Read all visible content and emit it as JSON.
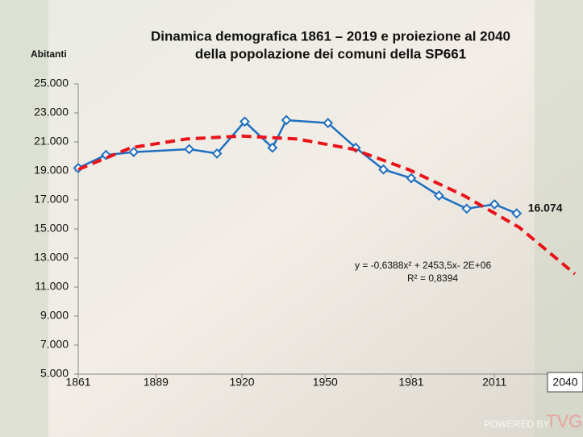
{
  "chart_data": {
    "type": "line",
    "title": [
      "Dinamica demografica 1861 – 2019 e proiezione al 2040",
      "della popolazione dei comuni della SP661"
    ],
    "ylabel": "Abitanti",
    "xlim": [
      1861,
      2040
    ],
    "xticks": [
      1861,
      1889,
      1920,
      1950,
      1981,
      2011,
      2040
    ],
    "ylim": [
      5000,
      25000
    ],
    "yticks": [
      {
        "value": 5000,
        "label": "5.000"
      },
      {
        "value": 7000,
        "label": "7.000"
      },
      {
        "value": 9000,
        "label": "9.000"
      },
      {
        "value": 11000,
        "label": "11.000"
      },
      {
        "value": 13000,
        "label": "13.000"
      },
      {
        "value": 15000,
        "label": "15.000"
      },
      {
        "value": 17000,
        "label": "17.000"
      },
      {
        "value": 19000,
        "label": "19.000"
      },
      {
        "value": 21000,
        "label": "21.000"
      },
      {
        "value": 23000,
        "label": "23.000"
      },
      {
        "value": 25000,
        "label": "25.000"
      }
    ],
    "series": [
      {
        "color": "#1f6fc0",
        "style": "solid",
        "markers": true,
        "x": [
          1861,
          1871,
          1881,
          1901,
          1911,
          1921,
          1931,
          1936,
          1951,
          1961,
          1971,
          1981,
          1991,
          2001,
          2011,
          2019
        ],
        "values": [
          19200,
          20100,
          20300,
          20500,
          20200,
          22400,
          20600,
          22500,
          22300,
          20600,
          19100,
          18500,
          17300,
          16400,
          16700,
          16074
        ],
        "value_labels": [
          null,
          null,
          null,
          null,
          null,
          null,
          null,
          null,
          null,
          null,
          null,
          null,
          null,
          null,
          null,
          "16.074"
        ]
      },
      {
        "color": "#e8141a",
        "style": "dashed",
        "markers": false,
        "x": [
          1861,
          1880,
          1900,
          1920,
          1940,
          1960,
          1980,
          2000,
          2020,
          2040
        ],
        "values": [
          19100,
          20600,
          21200,
          21400,
          21200,
          20500,
          19100,
          17300,
          15100,
          11900
        ]
      }
    ],
    "annotations": [
      "y = -0,6388x² + 2453,5x- 2E+06",
      "R² = 0,8394"
    ],
    "watermark": [
      "POWERED BY",
      "TVG.it"
    ]
  }
}
